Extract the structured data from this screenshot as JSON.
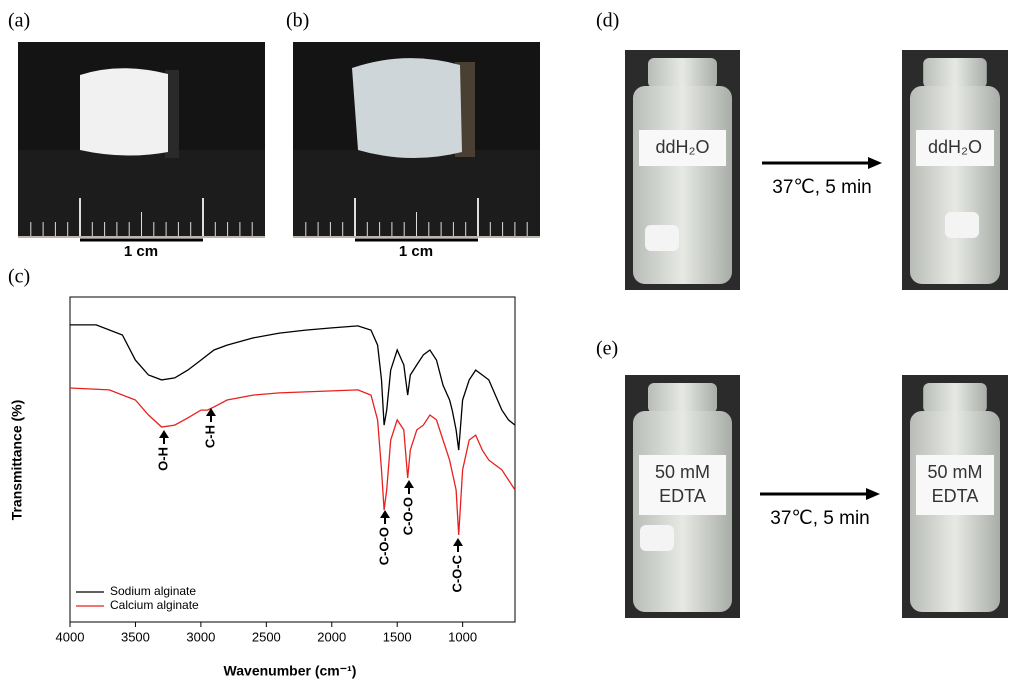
{
  "panels": {
    "a": {
      "label": "(a)",
      "scale": "1 cm"
    },
    "b": {
      "label": "(b)",
      "scale": "1 cm"
    },
    "c": {
      "label": "(c)"
    },
    "d": {
      "label": "(d)",
      "vial_label": "ddH₂O",
      "condition": "37℃, 5 min"
    },
    "e": {
      "label": "(e)",
      "vial_label_top": "50 mM",
      "vial_label_bottom": "EDTA",
      "condition": "37℃, 5 min"
    }
  },
  "chart_data": {
    "type": "line",
    "x_label": "Wavenumber (cm⁻¹)",
    "y_label": "Transmittance (%)",
    "xlim": [
      4000,
      600
    ],
    "xticks": [
      4000,
      3500,
      3000,
      2500,
      2000,
      1500,
      1000
    ],
    "ylim": [
      0,
      100
    ],
    "legend": "bottom-left",
    "annotations": [
      "O-H",
      "C-H",
      "C-O-O",
      "C-O-O",
      "C-O-C"
    ],
    "series": [
      {
        "name": "Sodium alginate",
        "color": "#000000",
        "x": [
          4000,
          3800,
          3600,
          3500,
          3400,
          3300,
          3200,
          3100,
          3000,
          2900,
          2800,
          2600,
          2400,
          2200,
          2000,
          1800,
          1700,
          1650,
          1620,
          1600,
          1580,
          1550,
          1500,
          1450,
          1420,
          1400,
          1350,
          1300,
          1250,
          1200,
          1150,
          1100,
          1080,
          1050,
          1030,
          1000,
          950,
          900,
          850,
          800,
          750,
          700,
          650,
          600
        ],
        "values": [
          91.4,
          91.4,
          88.3,
          80.6,
          76,
          74.5,
          75.1,
          77.5,
          80.6,
          83.7,
          85.2,
          87.4,
          88.9,
          89.8,
          90.5,
          91.1,
          89.8,
          85.2,
          74.5,
          60.6,
          65.2,
          77.5,
          83.7,
          79.1,
          69.8,
          76,
          79.1,
          82.2,
          83.7,
          80.6,
          72.9,
          68.3,
          65.2,
          59.1,
          52.9,
          68.3,
          74.5,
          77.5,
          76,
          74.5,
          69.8,
          65.2,
          62.2,
          60.6
        ]
      },
      {
        "name": "Calcium alginate",
        "color": "#e8211f",
        "x": [
          4000,
          3700,
          3500,
          3400,
          3300,
          3200,
          3100,
          3000,
          2950,
          2900,
          2800,
          2600,
          2400,
          2200,
          2000,
          1800,
          1700,
          1650,
          1620,
          1600,
          1580,
          1550,
          1500,
          1450,
          1420,
          1400,
          1350,
          1300,
          1250,
          1200,
          1150,
          1100,
          1050,
          1030,
          1000,
          950,
          900,
          850,
          800,
          750,
          700,
          650,
          600
        ],
        "values": [
          72,
          71.4,
          68.3,
          63.7,
          60,
          60.6,
          62.8,
          65.2,
          65.2,
          66.2,
          68.3,
          69.8,
          70.5,
          70.8,
          71.1,
          71.4,
          69.8,
          62.2,
          46.8,
          34.5,
          40.6,
          56,
          62.2,
          59.1,
          44.3,
          52.9,
          59.1,
          60.6,
          63.7,
          62.2,
          56,
          49.8,
          40.6,
          26.8,
          46.8,
          56,
          57.5,
          52.9,
          49.8,
          48.3,
          46.8,
          43.7,
          40.6
        ]
      }
    ]
  }
}
